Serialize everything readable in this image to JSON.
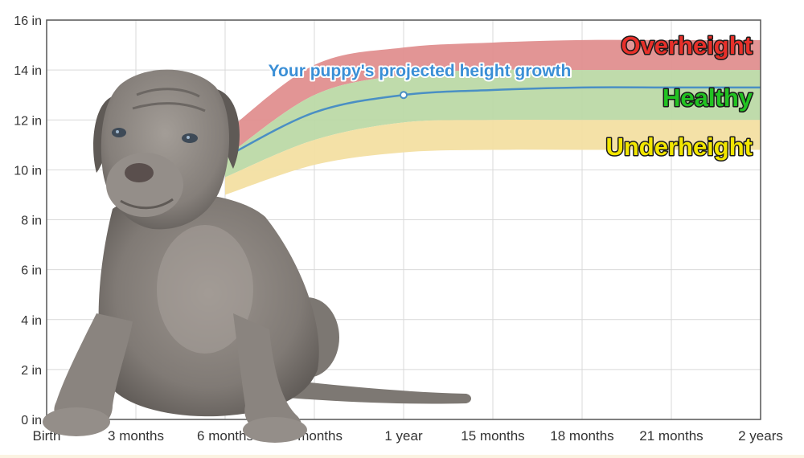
{
  "chart_data": {
    "type": "area",
    "title": "",
    "xlabel": "",
    "ylabel": "",
    "x_tick_labels": [
      "Birth",
      "3 months",
      "6 months",
      "9 months",
      "1 year",
      "15 months",
      "18 months",
      "21 months",
      "2 years"
    ],
    "x_ticks_months": [
      0,
      3,
      6,
      9,
      12,
      15,
      18,
      21,
      24
    ],
    "y_tick_labels": [
      "0 in",
      "2 in",
      "4 in",
      "6 in",
      "8 in",
      "10 in",
      "12 in",
      "14 in",
      "16 in"
    ],
    "y_ticks": [
      0,
      2,
      4,
      6,
      8,
      10,
      12,
      14,
      16
    ],
    "xlim_months": [
      0,
      24
    ],
    "ylim_in": [
      0,
      16
    ],
    "grid": true,
    "series": [
      {
        "name": "Your puppy's projected height growth",
        "color": "#4a8fc4",
        "x_months": [
          6,
          9,
          12,
          15,
          18,
          21,
          24
        ],
        "values": [
          10.5,
          12.3,
          13.0,
          13.2,
          13.3,
          13.3,
          13.3
        ],
        "marker_x_months": 12,
        "marker_value": 13.0
      }
    ],
    "bands": [
      {
        "name": "Overheight",
        "fill": "#e08f8f",
        "label_color": "#e8302a",
        "x_months": [
          6,
          9,
          12,
          15,
          18,
          21,
          24
        ],
        "lower": [
          10.5,
          13.0,
          13.8,
          14.0,
          14.0,
          14.0,
          14.0
        ],
        "upper": [
          11.5,
          14.2,
          14.9,
          15.1,
          15.2,
          15.2,
          15.2
        ]
      },
      {
        "name": "Healthy",
        "fill": "#bcd9a6",
        "label_color": "#22c322",
        "x_months": [
          6,
          9,
          12,
          15,
          18,
          21,
          24
        ],
        "lower": [
          9.7,
          11.2,
          11.9,
          12.0,
          12.0,
          12.0,
          12.0
        ],
        "upper": [
          10.5,
          13.0,
          13.8,
          14.0,
          14.0,
          14.0,
          14.0
        ]
      },
      {
        "name": "Underheight",
        "fill": "#f3dfa2",
        "label_color": "#f2e600",
        "x_months": [
          6,
          9,
          12,
          15,
          18,
          21,
          24
        ],
        "lower": [
          9.0,
          10.2,
          10.7,
          10.8,
          10.8,
          10.8,
          10.8
        ],
        "upper": [
          9.7,
          11.2,
          11.9,
          12.0,
          12.0,
          12.0,
          12.0
        ]
      }
    ]
  },
  "illustration": {
    "name": "cane-corso-puppy-photo",
    "fur_color": "#8a8580"
  }
}
